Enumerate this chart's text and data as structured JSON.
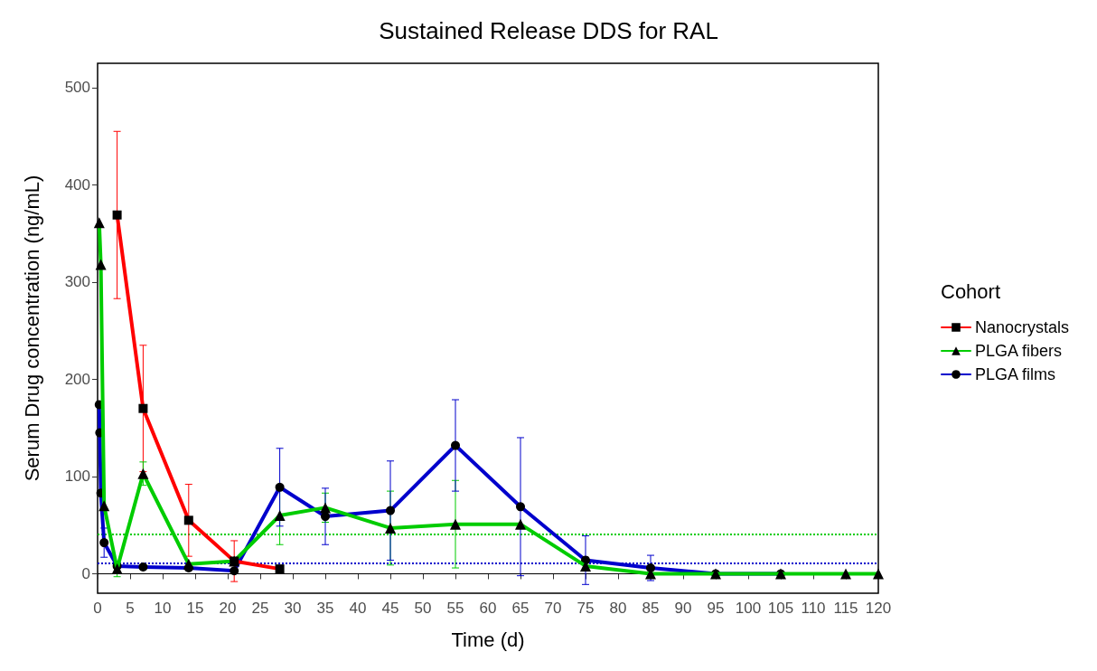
{
  "chart_data": {
    "type": "line",
    "title": "Sustained Release DDS for RAL",
    "xlabel": "Time (d)",
    "ylabel": "Serum Drug concentration (ng/mL)",
    "legend_title": "Cohort",
    "legend": "right",
    "grid": false,
    "line_style": "solid",
    "xlim": [
      0,
      120
    ],
    "xticks": [
      0,
      5,
      10,
      15,
      20,
      25,
      30,
      35,
      40,
      45,
      50,
      55,
      60,
      65,
      70,
      75,
      80,
      85,
      90,
      95,
      100,
      105,
      110,
      115,
      120
    ],
    "ylim": [
      -20,
      525
    ],
    "yticks": [
      0,
      100,
      200,
      300,
      400,
      500
    ],
    "series": [
      {
        "name": "Nanocrystals",
        "color": "#ff0000",
        "marker": "square",
        "x": [
          3,
          7,
          14,
          21,
          28
        ],
        "values": [
          369,
          170,
          55,
          13,
          5
        ],
        "errors": [
          86,
          65,
          37,
          21,
          null
        ]
      },
      {
        "name": "PLGA fibers",
        "color": "#00cc00",
        "marker": "triangle",
        "x": [
          0.25,
          0.5,
          1,
          3,
          7,
          14,
          21,
          28,
          35,
          45,
          55,
          65,
          75,
          85,
          95,
          105,
          115,
          120
        ],
        "values": [
          361,
          318,
          70,
          5,
          103,
          10,
          13,
          60,
          68,
          47,
          51,
          51,
          8,
          0,
          0,
          0,
          0,
          0
        ],
        "errors": [
          null,
          null,
          null,
          8,
          12,
          null,
          null,
          30,
          15,
          38,
          45,
          null,
          null,
          null,
          null,
          null,
          null,
          null
        ]
      },
      {
        "name": "PLGA films",
        "color": "#0000cc",
        "marker": "circle",
        "x": [
          0.25,
          0.33,
          0.5,
          1,
          3,
          7,
          14,
          21,
          28,
          35,
          45,
          55,
          65,
          75,
          85,
          95,
          105
        ],
        "values": [
          174,
          145,
          83,
          32,
          8,
          7,
          6,
          3,
          89,
          59,
          65,
          132,
          69,
          14,
          6,
          0,
          0
        ],
        "errors": [
          null,
          null,
          null,
          15,
          null,
          null,
          null,
          null,
          40,
          29,
          51,
          47,
          71,
          25,
          13,
          null,
          null
        ]
      }
    ],
    "ref_lines": [
      {
        "axis": "y",
        "value": 41,
        "color": "#00cc00",
        "line_style": "dotted"
      },
      {
        "axis": "y",
        "value": 11,
        "color": "#0000cc",
        "line_style": "dotted"
      },
      {
        "axis": "y",
        "value": 0,
        "color": "#000000",
        "line_style": "solid"
      }
    ]
  }
}
